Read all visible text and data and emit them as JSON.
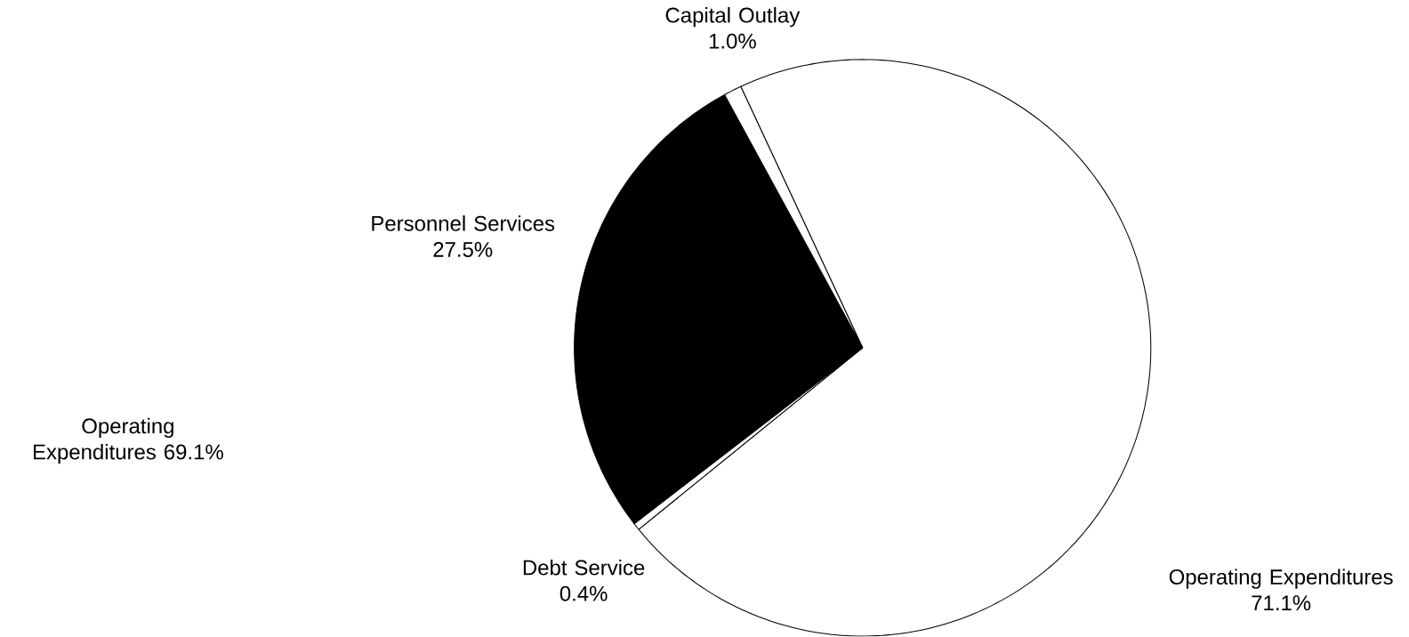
{
  "chart_data": {
    "type": "pie",
    "categories": [
      "Operating Expenditures",
      "Debt Service",
      "Personnel Services",
      "Capital Outlay"
    ],
    "values": [
      71.1,
      0.4,
      27.5,
      1.0
    ],
    "colors": [
      "#ffffff",
      "#ffffff",
      "#000000",
      "#ffffff"
    ],
    "value_labels": [
      "71.1%",
      "0.4%",
      "27.5%",
      "1.0%"
    ],
    "annotations": [
      "Operating Expenditures 69.1%"
    ]
  }
}
